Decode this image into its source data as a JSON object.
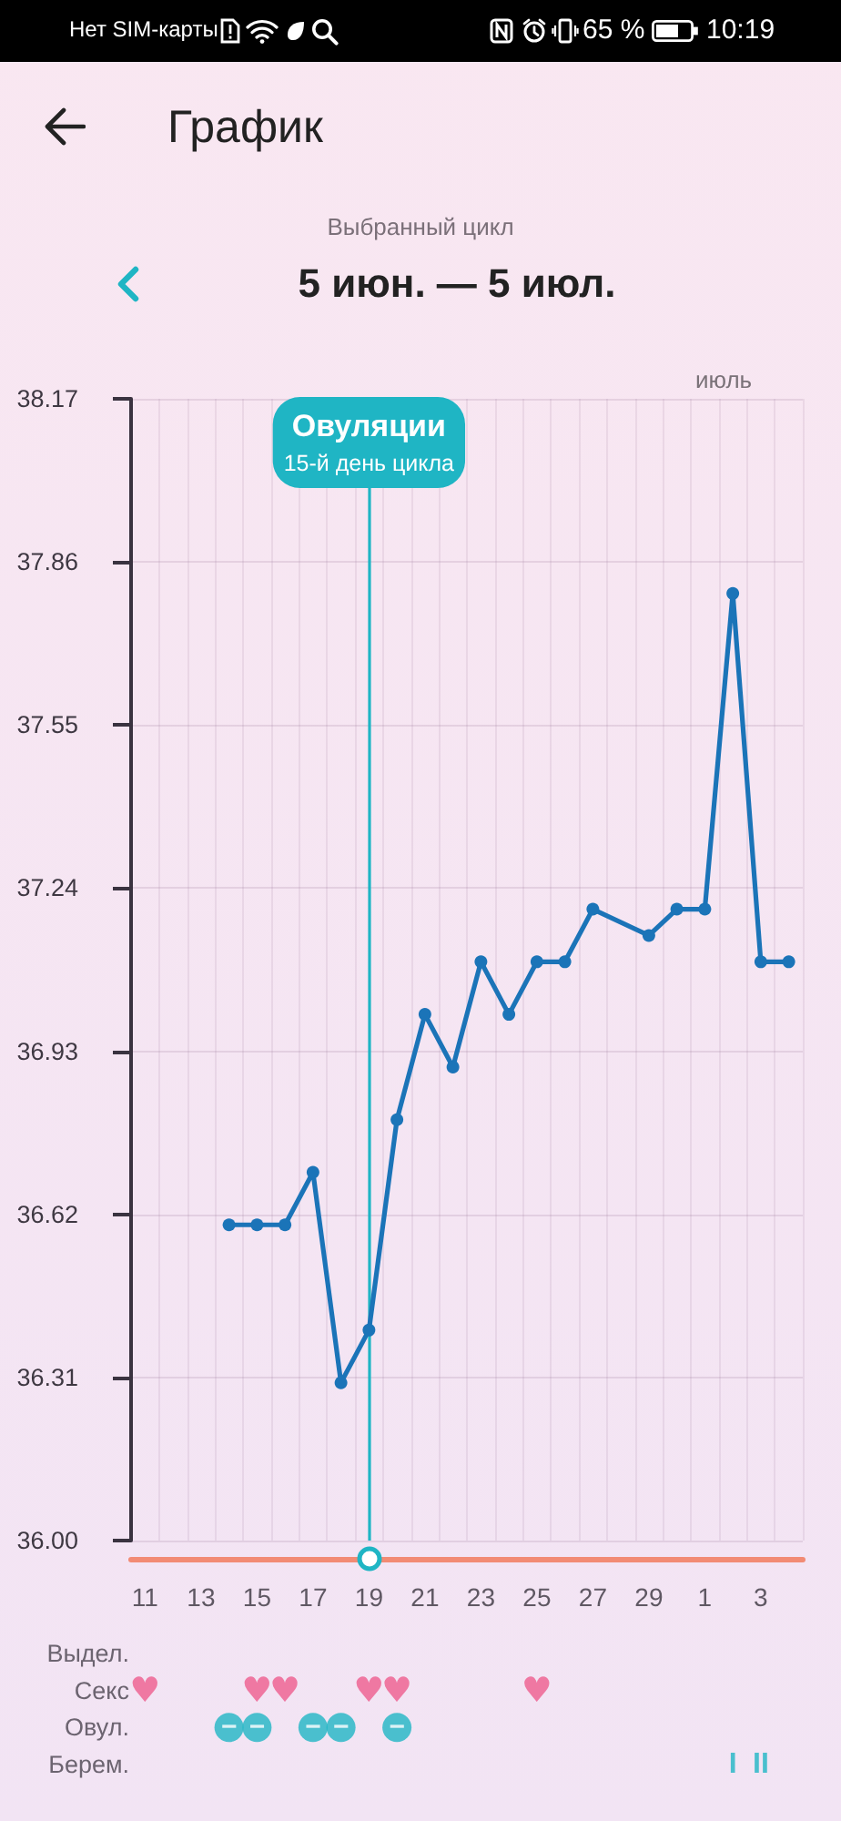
{
  "chart_data": [
    {
      "type": "line",
      "title": "График",
      "subtitle": "5 июн. — 5 июл.",
      "annotations": [
        "Нет SIM-карты",
        "65 %",
        "10:19",
        "Выбранный цикл",
        "июль"
      ],
      "categories": [
        "11",
        null,
        "13",
        null,
        "15",
        null,
        "17",
        null,
        "19",
        null,
        "21",
        null,
        "23",
        null,
        "25",
        null,
        "27",
        null,
        "29",
        null,
        "1",
        null,
        "3",
        null
      ],
      "values": [
        null,
        null,
        null,
        36.6,
        36.6,
        36.6,
        36.7,
        36.3,
        36.4,
        36.8,
        37.0,
        36.9,
        37.1,
        37.0,
        37.1,
        37.1,
        37.2,
        null,
        37.15,
        37.2,
        37.2,
        37.8,
        37.1,
        37.1
      ],
      "color": "#1b74b8",
      "ylim": [
        36.0,
        38.17
      ],
      "yticks": [
        {
          "value": 36.0,
          "label": "36.00"
        },
        36.31,
        36.62,
        36.93,
        37.24,
        37.55,
        37.86,
        38.17
      ],
      "grid": true,
      "marker": "circle",
      "line_style": "solid",
      "ref_lines": [
        {
          "axis": "x",
          "value": "19",
          "label": "Овуляции\n15-й день цикла",
          "color": "#1fb5c4"
        }
      ]
    },
    {
      "type": "heatmap",
      "categories": [
        null,
        null,
        null,
        null,
        null,
        null,
        null,
        null,
        null,
        null,
        null,
        null,
        null,
        null,
        null,
        null,
        null,
        null,
        null,
        null,
        null,
        null,
        null,
        null
      ],
      "y_categories": [
        "Выдел.",
        "Секс",
        "Овул.",
        "Берем."
      ],
      "cells": [
        [
          null,
          null,
          null,
          null,
          null,
          null,
          null,
          null,
          null,
          null,
          null,
          null,
          null,
          null,
          null,
          null,
          null,
          null,
          null,
          null,
          null,
          null,
          null,
          null
        ],
        [
          null,
          null,
          null,
          null,
          null,
          null,
          null,
          null,
          null,
          null,
          null,
          null,
          null,
          null,
          null,
          null,
          null,
          null,
          null,
          null,
          null,
          null,
          null,
          null
        ],
        [
          null,
          null,
          null,
          null,
          null,
          null,
          null,
          null,
          null,
          null,
          null,
          null,
          null,
          null,
          null,
          null,
          null,
          null,
          null,
          null,
          null,
          null,
          null,
          null
        ],
        [
          null,
          null,
          null,
          null,
          null,
          null,
          null,
          null,
          null,
          null,
          null,
          null,
          null,
          null,
          null,
          null,
          null,
          null,
          null,
          null,
          null,
          null,
          null,
          null
        ]
      ],
      "cell_labels": [
        [
          null,
          null,
          null,
          null,
          null,
          null,
          null,
          null,
          null,
          null,
          null,
          null,
          null,
          null,
          null,
          null,
          null,
          null,
          null,
          null,
          null,
          null,
          null,
          null
        ],
        [
          "♥",
          null,
          null,
          null,
          "♥",
          "♥",
          null,
          null,
          "♥",
          "♥",
          null,
          null,
          null,
          null,
          "♥",
          null,
          null,
          null,
          null,
          null,
          null,
          null,
          null,
          null
        ],
        [
          null,
          null,
          null,
          "−",
          "−",
          null,
          "−",
          "−",
          null,
          "−",
          null,
          null,
          null,
          null,
          null,
          null,
          null,
          null,
          null,
          null,
          null,
          null,
          null,
          null
        ],
        [
          null,
          null,
          null,
          null,
          null,
          null,
          null,
          null,
          null,
          null,
          null,
          null,
          null,
          null,
          null,
          null,
          null,
          null,
          null,
          null,
          null,
          "I",
          "II",
          null
        ]
      ],
      "tick_labels": "y"
    }
  ]
}
